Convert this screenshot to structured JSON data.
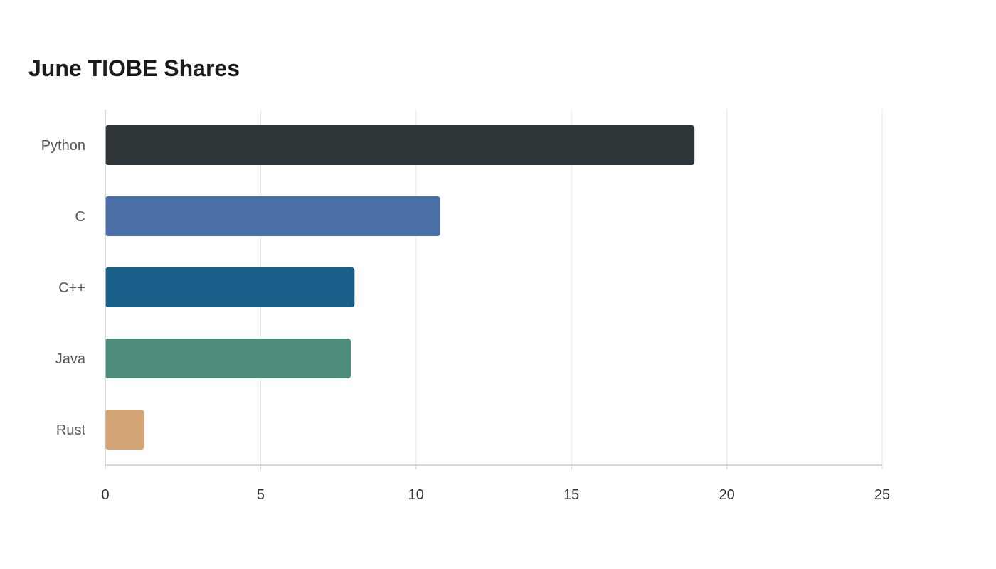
{
  "chart_data": {
    "type": "bar",
    "orientation": "horizontal",
    "title": "June TIOBE Shares",
    "categories": [
      "Python",
      "C",
      "C++",
      "Java",
      "Rust"
    ],
    "values": [
      18.96,
      10.78,
      8.02,
      7.9,
      1.25
    ],
    "colors": [
      "#2e3538",
      "#4a6fa5",
      "#186089",
      "#4d8c7a",
      "#d4a574"
    ],
    "xlim": [
      0,
      25
    ],
    "xticks": [
      0,
      5,
      10,
      15,
      20,
      25
    ],
    "grid": true,
    "xlabel": "",
    "ylabel": ""
  }
}
